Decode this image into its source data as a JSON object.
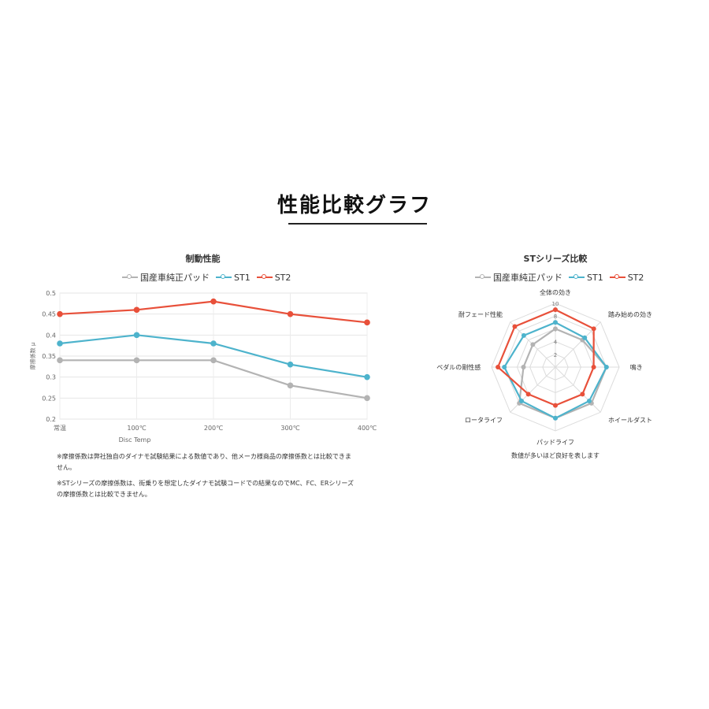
{
  "page_title": "性能比較グラフ",
  "colors": {
    "oem": "#b3b3b3",
    "st1": "#4db3cc",
    "st2": "#e8503a"
  },
  "chart_data": [
    {
      "type": "line",
      "title": "制動性能",
      "xlabel": "Disc Temp",
      "ylabel": "摩擦係数 μ",
      "categories": [
        "常温",
        "100℃",
        "200℃",
        "300℃",
        "400℃"
      ],
      "ylim": [
        0.2,
        0.5
      ],
      "yticks": [
        "0.2",
        "0.25",
        "0.3",
        "0.35",
        "0.4",
        "0.45",
        "0.5"
      ],
      "grid": true,
      "legend": "top",
      "series": [
        {
          "name": "国産車純正パッド",
          "values": [
            0.34,
            0.34,
            0.34,
            0.28,
            0.25
          ]
        },
        {
          "name": "ST1",
          "values": [
            0.38,
            0.4,
            0.38,
            0.33,
            0.3
          ]
        },
        {
          "name": "ST2",
          "values": [
            0.45,
            0.46,
            0.48,
            0.45,
            0.43
          ]
        }
      ]
    },
    {
      "type": "radar",
      "title": "STシリーズ比較",
      "axes": [
        "全体の効き",
        "踏み始めの効き",
        "鳴き",
        "ホイールダスト",
        "パッドライフ",
        "ロータライフ",
        "ペダルの剛性感",
        "耐フェード性能"
      ],
      "rlim": [
        0,
        10
      ],
      "rticks": [
        "2",
        "4",
        "6",
        "8",
        "10"
      ],
      "legend": "top",
      "series": [
        {
          "name": "国産車純正パッド",
          "values": [
            6,
            6,
            8,
            8,
            8,
            8,
            5,
            5
          ]
        },
        {
          "name": "ST1",
          "values": [
            7,
            6.5,
            8,
            7.5,
            8,
            7.5,
            8,
            7
          ]
        },
        {
          "name": "ST2",
          "values": [
            9,
            8.5,
            6,
            6,
            6,
            6,
            9,
            9
          ]
        }
      ],
      "footnote": "数値が多いほど良好を表します"
    }
  ],
  "notes": [
    "※摩擦係数は弊社独自のダイナモ試験結果による数値であり、他メーカ様商品の摩擦係数とは比較できません。",
    "※STシリーズの摩擦係数は、街乗りを想定したダイナモ試験コードでの結果なのでMC、FC、ERシリーズの摩擦係数とは比較できません。"
  ]
}
